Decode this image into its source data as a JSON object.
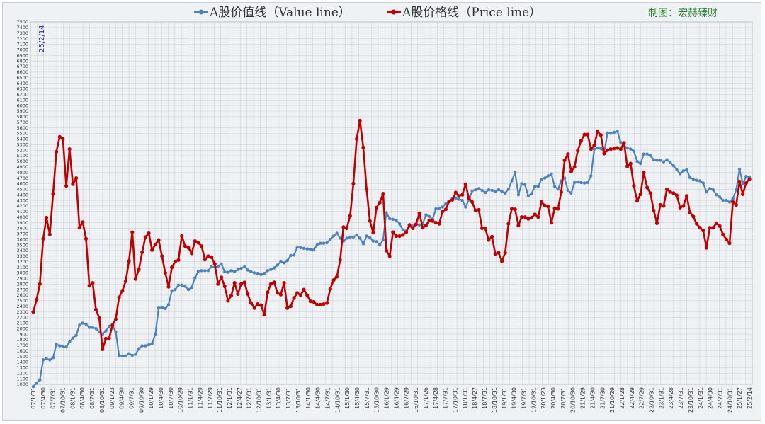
{
  "legend": {
    "value_series": "A股价值线（Value line）",
    "price_series": "A股价格线（Price line）",
    "credit": "制图：宏赫臻财"
  },
  "date_marker": "25/2/14",
  "colors": {
    "value_line": "#4f81bd",
    "price_line": "#c00000",
    "grid": "#c8cdd3",
    "plot_bg": "#eef2f4"
  },
  "chart_data": {
    "type": "line",
    "title": "",
    "xlabel": "",
    "ylabel": "",
    "ylim": [
      1000,
      7500
    ],
    "ytick_step": 100,
    "grid": true,
    "legend_position": "top",
    "x_tick_labels": [
      "07/1/31",
      "07/4/30",
      "07/7/31",
      "07/10/31",
      "08/1/31",
      "08/4/30",
      "08/7/31",
      "08/10/31",
      "09/1/23",
      "09/4/30",
      "09/7/31",
      "09/10/30",
      "10/1/29",
      "10/4/30",
      "10/7/30",
      "10/10/29",
      "11/1/31",
      "11/4/29",
      "11/7/29",
      "11/10/31",
      "12/1/31",
      "12/4/27",
      "12/7/31",
      "12/10/31",
      "13/1/31",
      "13/4/30",
      "13/7/31",
      "13/10/31",
      "14/1/30",
      "14/4/30",
      "14/7/31",
      "14/10/31",
      "15/1/30",
      "15/4/30",
      "15/7/31",
      "15/10/30",
      "16/1/29",
      "16/4/29",
      "16/7/29",
      "16/10/31",
      "17/1/26",
      "17/4/28",
      "17/7/31",
      "17/10/31",
      "18/1/31",
      "18/4/27",
      "18/7/31",
      "18/10/31",
      "19/1/31",
      "19/4/30",
      "19/7/31",
      "19/10/31",
      "20/1/23",
      "20/4/30",
      "20/7/31",
      "20/10/30",
      "21/1/29",
      "21/4/30",
      "21/7/30",
      "21/10/29",
      "22/1/28",
      "22/4/29",
      "22/7/29",
      "22/10/31",
      "23/1/31",
      "23/4/28",
      "23/7/31",
      "23/10/31",
      "24/1/31",
      "24/4/30",
      "24/7/31",
      "24/10/31",
      "25/1/27",
      "25/2/14"
    ],
    "series": [
      {
        "name": "A股价值线（Value line）",
        "values": [
          960,
          1020,
          1080,
          1440,
          1460,
          1440,
          1480,
          1720,
          1690,
          1680,
          1670,
          1760,
          1830,
          1880,
          2060,
          2100,
          2080,
          2020,
          2020,
          2000,
          1940,
          1900,
          1960,
          2040,
          2060,
          1940,
          1520,
          1510,
          1510,
          1550,
          1520,
          1540,
          1640,
          1690,
          1690,
          1710,
          1730,
          1900,
          2370,
          2380,
          2360,
          2430,
          2680,
          2700,
          2780,
          2780,
          2760,
          2700,
          2740,
          2910,
          3030,
          3040,
          3040,
          3040,
          3110,
          3100,
          3120,
          3160,
          3020,
          3010,
          3040,
          3020,
          3060,
          3080,
          3110,
          3050,
          3020,
          3000,
          2990,
          2970,
          2990,
          3040,
          3060,
          3090,
          3140,
          3200,
          3180,
          3220,
          3310,
          3320,
          3460,
          3450,
          3440,
          3430,
          3420,
          3410,
          3500,
          3530,
          3530,
          3540,
          3600,
          3660,
          3710,
          3620,
          3570,
          3620,
          3640,
          3640,
          3680,
          3620,
          3520,
          3660,
          3630,
          3570,
          3560,
          3500,
          3590,
          4080,
          3970,
          3960,
          3940,
          3880,
          3770,
          3750,
          3830,
          3840,
          3870,
          3860,
          3880,
          4040,
          4010,
          3960,
          4150,
          4160,
          4180,
          4240,
          4280,
          4330,
          4340,
          4320,
          4300,
          4180,
          4310,
          4470,
          4490,
          4510,
          4480,
          4440,
          4490,
          4480,
          4460,
          4490,
          4460,
          4430,
          4500,
          4650,
          4800,
          4400,
          4600,
          4580,
          4380,
          4420,
          4550,
          4550,
          4680,
          4700,
          4740,
          4770,
          4550,
          4500,
          4650,
          4700,
          4480,
          4430,
          4620,
          4630,
          4620,
          4610,
          4620,
          4740,
          5220,
          5240,
          5230,
          5160,
          5510,
          5500,
          5520,
          5540,
          5340,
          5280,
          5240,
          5220,
          5180,
          5000,
          4960,
          5130,
          5130,
          5100,
          5030,
          5020,
          5020,
          4990,
          5030,
          4980,
          4920,
          4850,
          4780,
          4830,
          4850,
          4710,
          4680,
          4660,
          4650,
          4610,
          4450,
          4510,
          4490,
          4400,
          4360,
          4300,
          4300,
          4270,
          4330,
          4490,
          4860,
          4600,
          4730,
          4720
        ]
      },
      {
        "name": "A股价格线（Price line）",
        "values": [
          2300,
          2520,
          2800,
          3610,
          3990,
          3690,
          4420,
          5170,
          5440,
          5400,
          4560,
          5220,
          4590,
          4700,
          3810,
          3910,
          3610,
          2770,
          2820,
          2340,
          2190,
          1630,
          1820,
          1830,
          2060,
          2170,
          2560,
          2680,
          2850,
          3210,
          3730,
          2890,
          3060,
          3370,
          3640,
          3710,
          3410,
          3510,
          3590,
          3300,
          3000,
          2750,
          3100,
          3200,
          3230,
          3660,
          3480,
          3450,
          3350,
          3570,
          3540,
          3480,
          3240,
          3300,
          3280,
          3160,
          2800,
          2920,
          2760,
          2500,
          2590,
          2820,
          2620,
          2800,
          2830,
          2620,
          2460,
          2370,
          2440,
          2420,
          2250,
          2650,
          2800,
          2830,
          2640,
          2610,
          2820,
          2370,
          2400,
          2550,
          2640,
          2600,
          2700,
          2600,
          2490,
          2480,
          2430,
          2430,
          2440,
          2460,
          2710,
          2870,
          2930,
          3230,
          3820,
          3800,
          4020,
          4600,
          5400,
          5730,
          5250,
          4500,
          3930,
          3720,
          4170,
          4260,
          4420,
          3400,
          3300,
          3730,
          3660,
          3660,
          3680,
          3730,
          3860,
          3800,
          3870,
          4070,
          3810,
          3850,
          3940,
          3930,
          3900,
          3880,
          4100,
          4140,
          4280,
          4310,
          4440,
          4380,
          4400,
          4590,
          4340,
          4270,
          4120,
          4130,
          3800,
          3790,
          3590,
          3650,
          3340,
          3360,
          3210,
          3360,
          3880,
          4150,
          4140,
          3850,
          4000,
          4000,
          3970,
          3990,
          4050,
          4000,
          4270,
          4210,
          4190,
          3900,
          4160,
          4150,
          4450,
          5020,
          5130,
          4820,
          4900,
          5190,
          5370,
          5480,
          5480,
          5220,
          5290,
          5540,
          5470,
          5140,
          5200,
          5220,
          5230,
          5240,
          5220,
          5330,
          4910,
          4960,
          4560,
          4290,
          4410,
          4800,
          4530,
          4430,
          4120,
          3890,
          4220,
          4200,
          4500,
          4450,
          4430,
          4390,
          4170,
          4200,
          4380,
          4080,
          4010,
          3880,
          3810,
          3760,
          3450,
          3810,
          3810,
          3890,
          3840,
          3690,
          3600,
          3530,
          4270,
          4220,
          4640,
          4410,
          4610,
          4680
        ]
      }
    ]
  }
}
